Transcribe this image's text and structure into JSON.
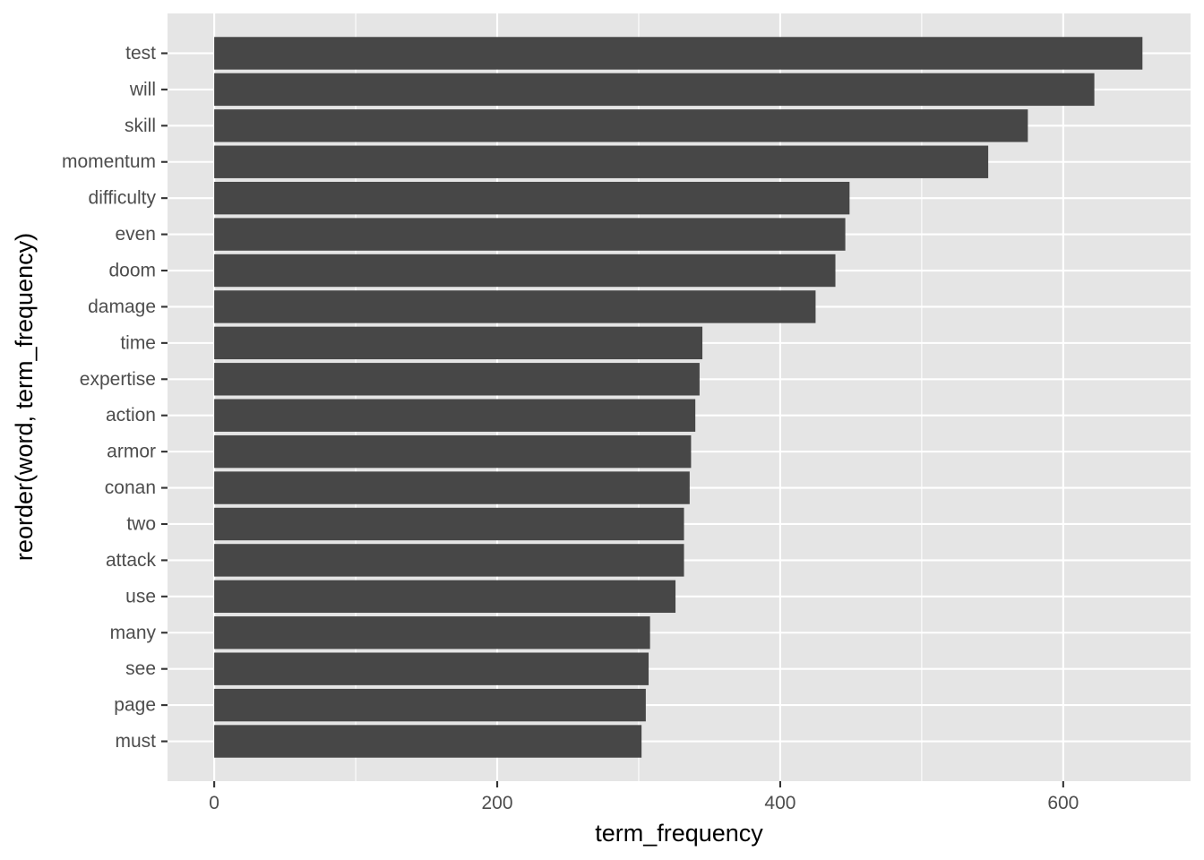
{
  "chart_data": {
    "type": "bar",
    "orientation": "horizontal",
    "xlabel": "term_frequency",
    "ylabel": "reorder(word, term_frequency)",
    "xlim": [
      -33,
      690
    ],
    "x_ticks": [
      0,
      200,
      400,
      600
    ],
    "x_tick_labels": [
      "0",
      "200",
      "400",
      "600"
    ],
    "grid": true,
    "colors": {
      "panel_background": "#e5e5e5",
      "grid": "#ffffff",
      "bar": "#474747",
      "tick_label": "#4d4d4d"
    },
    "categories": [
      "test",
      "will",
      "skill",
      "momentum",
      "difficulty",
      "even",
      "doom",
      "damage",
      "time",
      "expertise",
      "action",
      "armor",
      "conan",
      "two",
      "attack",
      "use",
      "many",
      "see",
      "page",
      "must"
    ],
    "values": [
      656,
      622,
      575,
      547,
      449,
      446,
      439,
      425,
      345,
      343,
      340,
      337,
      336,
      332,
      332,
      326,
      308,
      307,
      305,
      302
    ]
  }
}
